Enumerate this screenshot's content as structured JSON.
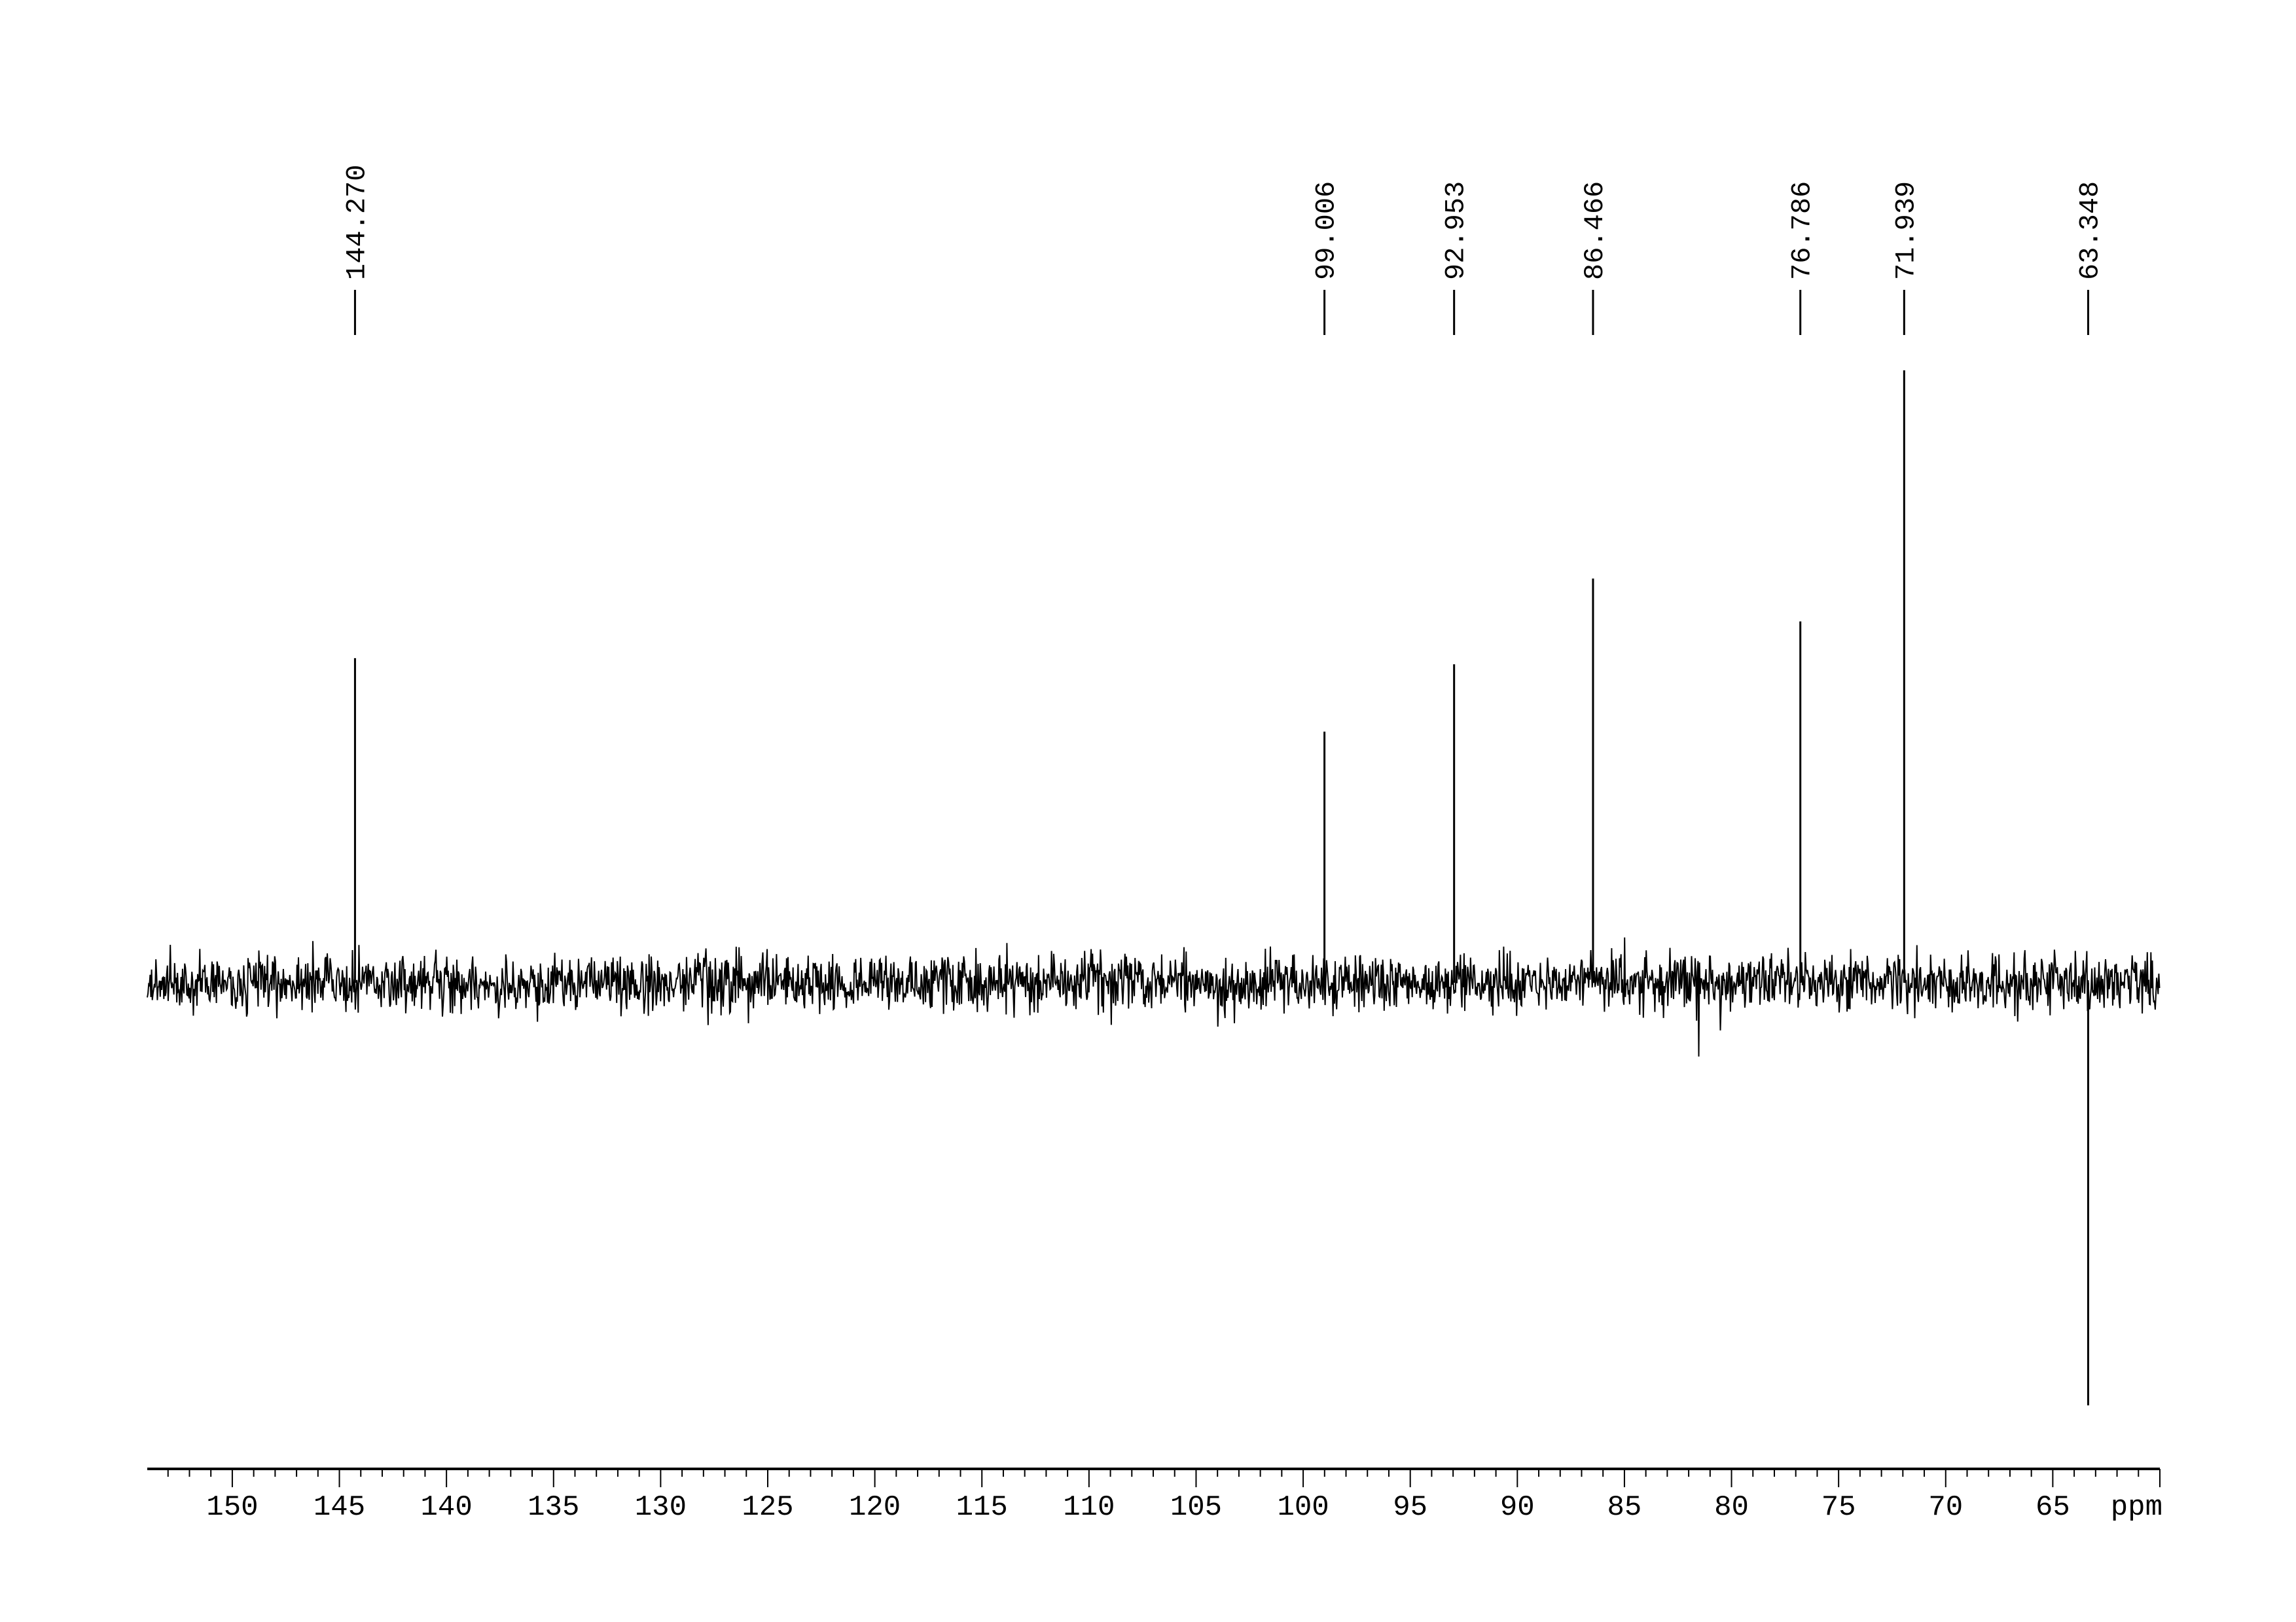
{
  "chart_data": {
    "type": "line",
    "title": "",
    "xlabel": "ppm",
    "ylabel": "",
    "xlim": [
      153.97,
      60.0
    ],
    "x_reversed": true,
    "grid": false,
    "x_ticks": [
      150,
      145,
      140,
      135,
      130,
      125,
      120,
      115,
      110,
      105,
      100,
      95,
      90,
      85,
      80,
      75,
      70,
      65
    ],
    "x_unit_label": "ppm",
    "peaks": [
      {
        "label": "144.270",
        "ppm": 144.27,
        "relative_intensity": 0.53
      },
      {
        "label": "99.006",
        "ppm": 99.006,
        "relative_intensity": 0.41
      },
      {
        "label": "92.953",
        "ppm": 92.953,
        "relative_intensity": 0.52
      },
      {
        "label": "86.466",
        "ppm": 86.466,
        "relative_intensity": 0.66
      },
      {
        "label": "76.786",
        "ppm": 76.786,
        "relative_intensity": 0.59
      },
      {
        "label": "71.939",
        "ppm": 71.939,
        "relative_intensity": 1.0
      },
      {
        "label": "63.348",
        "ppm": 63.348,
        "relative_intensity": -0.69
      }
    ],
    "noise_level": 0.05,
    "line_color": "#000000"
  }
}
